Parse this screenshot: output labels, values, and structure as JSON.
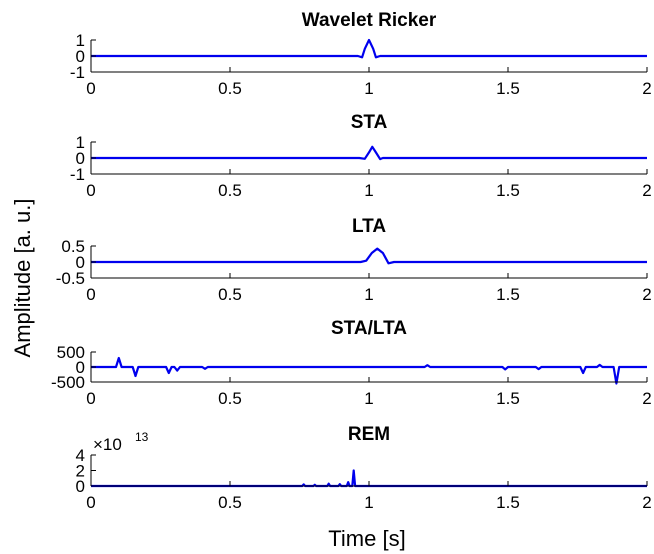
{
  "figure": {
    "ylabel": "Amplitude [a. u.]",
    "xlabel": "Time [s]"
  },
  "colors": {
    "line": "#0000ee",
    "axes": "#000000"
  },
  "chart_data": [
    {
      "type": "line",
      "title": "Wavelet Ricker",
      "xlim": [
        0,
        2
      ],
      "ylim": [
        -1,
        1
      ],
      "xticks": [
        0,
        0.5,
        1,
        1.5,
        2
      ],
      "xtick_labels": [
        "0",
        "0.5",
        "1",
        "1.5",
        "2"
      ],
      "yticks": [
        -1,
        0,
        1
      ],
      "ytick_labels": [
        "-1",
        "0",
        "1"
      ],
      "series": [
        {
          "x": [
            0,
            0.96,
            0.975,
            0.985,
            1.0,
            1.015,
            1.025,
            1.04,
            2
          ],
          "y": [
            0,
            0,
            -0.08,
            0.45,
            1.0,
            0.45,
            -0.08,
            0,
            0
          ]
        }
      ]
    },
    {
      "type": "line",
      "title": "STA",
      "xlim": [
        0,
        2
      ],
      "ylim": [
        -1,
        1
      ],
      "xticks": [
        0,
        0.5,
        1,
        1.5,
        2
      ],
      "xtick_labels": [
        "0",
        "0.5",
        "1",
        "1.5",
        "2"
      ],
      "yticks": [
        -1,
        0,
        1
      ],
      "ytick_labels": [
        "-1",
        "0",
        "1"
      ],
      "series": [
        {
          "x": [
            0,
            0.965,
            0.985,
            1.0,
            1.012,
            1.025,
            1.04,
            1.05,
            2
          ],
          "y": [
            0,
            0,
            -0.05,
            0.35,
            0.7,
            0.35,
            -0.07,
            0,
            0
          ]
        }
      ]
    },
    {
      "type": "line",
      "title": "LTA",
      "xlim": [
        0,
        2
      ],
      "ylim": [
        -0.5,
        0.5
      ],
      "xticks": [
        0,
        0.5,
        1,
        1.5,
        2
      ],
      "xtick_labels": [
        "0",
        "0.5",
        "1",
        "1.5",
        "2"
      ],
      "yticks": [
        -0.5,
        0,
        0.5
      ],
      "ytick_labels": [
        "-0.5",
        "0",
        "0.5"
      ],
      "series": [
        {
          "x": [
            0,
            0.97,
            0.99,
            1.01,
            1.03,
            1.05,
            1.07,
            1.09,
            2
          ],
          "y": [
            0,
            0,
            0.04,
            0.28,
            0.42,
            0.28,
            -0.04,
            0,
            0
          ]
        }
      ]
    },
    {
      "type": "line",
      "title": "STA/LTA",
      "xlim": [
        0,
        2
      ],
      "ylim": [
        -500,
        500
      ],
      "xticks": [
        0,
        0.5,
        1,
        1.5,
        2
      ],
      "xtick_labels": [
        "0",
        "0.5",
        "1",
        "1.5",
        "2"
      ],
      "yticks": [
        -500,
        0,
        500
      ],
      "ytick_labels": [
        "-500",
        "0",
        "500"
      ],
      "series": [
        {
          "x": [
            0,
            0.09,
            0.1,
            0.11,
            0.15,
            0.16,
            0.17,
            0.27,
            0.28,
            0.29,
            0.3,
            0.31,
            0.32,
            0.4,
            0.41,
            0.42,
            1.2,
            1.21,
            1.22,
            1.48,
            1.49,
            1.5,
            1.6,
            1.61,
            1.62,
            1.76,
            1.77,
            1.78,
            1.82,
            1.83,
            1.84,
            1.88,
            1.89,
            1.9,
            2
          ],
          "y": [
            0,
            0,
            300,
            0,
            0,
            -300,
            0,
            0,
            -200,
            0,
            0,
            -120,
            0,
            0,
            -60,
            0,
            0,
            60,
            0,
            0,
            -80,
            0,
            0,
            -70,
            0,
            0,
            -200,
            0,
            0,
            70,
            0,
            0,
            -550,
            0,
            0
          ]
        }
      ]
    },
    {
      "type": "line",
      "title": "REM",
      "xlim": [
        0,
        2
      ],
      "ylim": [
        0,
        4
      ],
      "xticks": [
        0,
        0.5,
        1,
        1.5,
        2
      ],
      "xtick_labels": [
        "0",
        "0.5",
        "1",
        "1.5",
        "2"
      ],
      "yticks": [
        0,
        2,
        4
      ],
      "ytick_labels": [
        "0",
        "2",
        "4"
      ],
      "multiplier_base": "×10",
      "multiplier_exp": "13",
      "series": [
        {
          "x": [
            0,
            0.76,
            0.765,
            0.77,
            0.8,
            0.805,
            0.81,
            0.85,
            0.855,
            0.86,
            0.89,
            0.895,
            0.9,
            0.92,
            0.925,
            0.93,
            0.94,
            0.945,
            0.95,
            2
          ],
          "y": [
            0,
            0,
            0.2,
            0,
            0,
            0.15,
            0,
            0,
            0.3,
            0,
            0,
            0.25,
            0,
            0,
            0.5,
            0,
            0,
            2.0,
            0,
            0
          ]
        }
      ]
    }
  ]
}
